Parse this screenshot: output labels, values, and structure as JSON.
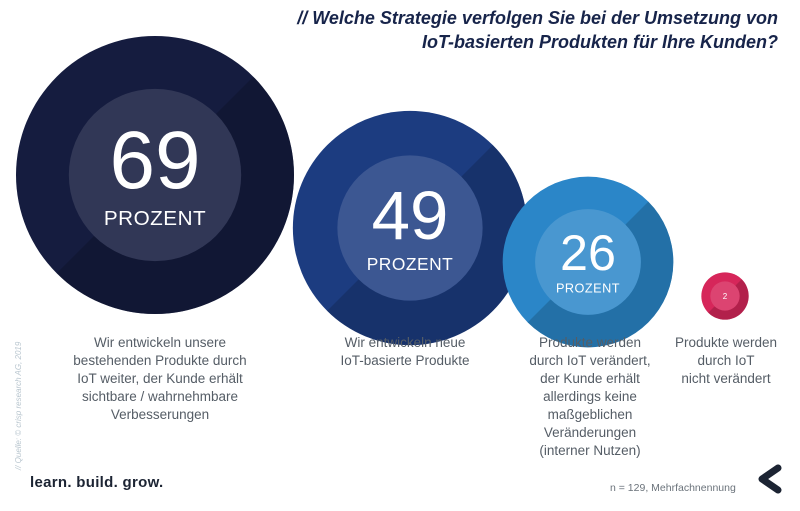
{
  "title": {
    "line1": "// Welche Strategie verfolgen Sie bei der Umsetzung von",
    "line2": "IoT-basierten Produkten für Ihre Kunden?"
  },
  "chart_data": {
    "type": "bubble",
    "unit": "PROZENT",
    "categories": [
      "Wir entwickeln unsere bestehenden Produkte durch IoT weiter, der Kunde erhält sichtbare / wahrnehmbare Verbesserungen",
      "Wir entwickeln neue IoT-basierte Produkte",
      "Produkte werden durch IoT verändert, der Kunde erhält allerdings keine maßgeblichen Veränderungen (interner Nutzen)",
      "Produkte werden durch IoT nicht verändert"
    ],
    "values": [
      69,
      49,
      26,
      2
    ],
    "colors": [
      "#151c3f",
      "#1c3c80",
      "#2b86c8",
      "#d6265a"
    ]
  },
  "labels": [
    [
      "Wir entwickeln unsere",
      "bestehenden Produkte durch",
      "IoT weiter, der Kunde erhält",
      "sichtbare / wahrnehmbare",
      "Verbesserungen"
    ],
    [
      "Wir entwickeln neue",
      "IoT-basierte Produkte"
    ],
    [
      "Produkte werden",
      "durch IoT verändert,",
      "der Kunde erhält",
      "allerdings keine",
      "maßgeblichen",
      "Veränderungen",
      "(interner Nutzen)"
    ],
    [
      "Produkte werden",
      "durch IoT",
      "nicht verändert"
    ]
  ],
  "source": "// Quelle: © crisp research AG, 2019",
  "tagline": "learn. build. grow.",
  "footnote": "n = 129, Mehrfachnennung",
  "logo_icon": "crisp-c-logo-icon"
}
